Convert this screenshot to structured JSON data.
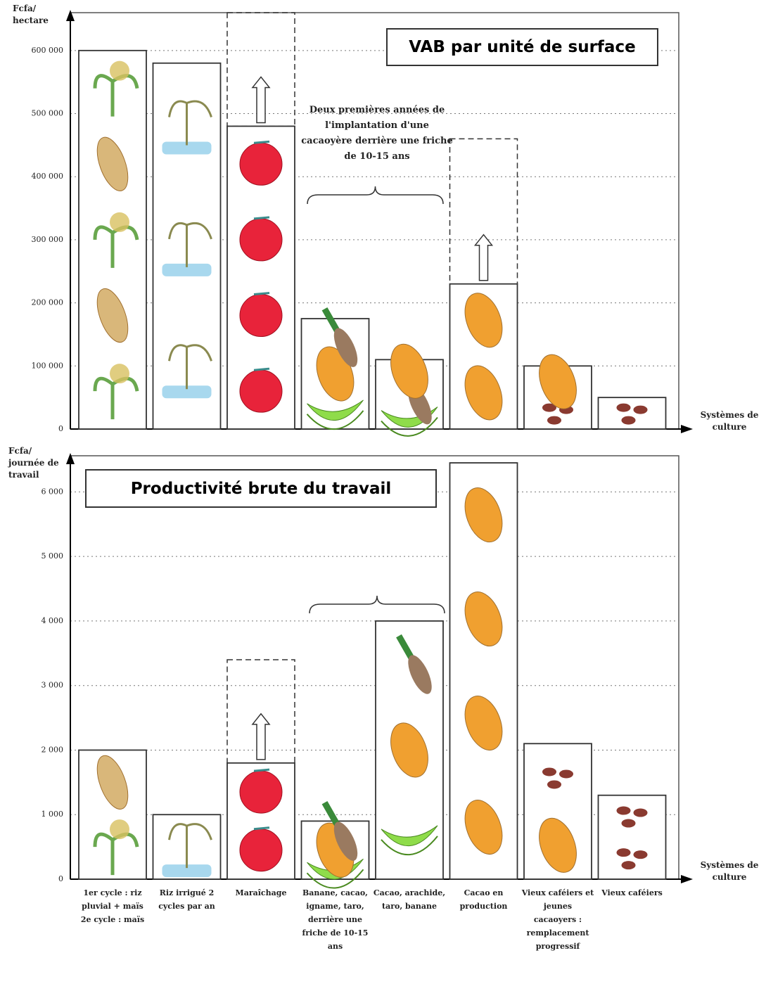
{
  "chart_data": [
    {
      "type": "bar",
      "title": "VAB par unité de surface",
      "y_label": "Fcfa/ hectare",
      "x_label": "Systèmes de culture",
      "annotation": "Deux premières années de l'implantation d'une cacaoyère derrière une friche de 10-15 ans",
      "values": [
        600000,
        580000,
        480000,
        175000,
        110000,
        230000,
        100000,
        50000
      ],
      "potential_values": [
        null,
        null,
        660000,
        null,
        null,
        460000,
        null,
        null
      ],
      "ylim": [
        0,
        660000
      ],
      "yticks": [
        0,
        {
          "value": 100000,
          "label": "100 000"
        },
        {
          "value": 200000,
          "label": "200 000"
        },
        {
          "value": 300000,
          "label": "300 000"
        },
        {
          "value": 400000,
          "label": "400 000"
        },
        {
          "value": 500000,
          "label": "500 000"
        },
        {
          "value": 600000,
          "label": "600 000"
        }
      ],
      "grid": true
    },
    {
      "type": "bar",
      "title": "Productivité brute du travail",
      "y_label": "Fcfa/ journée de travail",
      "x_label": "Systèmes de culture",
      "categories": [
        "1er cycle : riz pluvial + maïs 2e cycle : maïs",
        "Riz irrigué 2 cycles par an",
        "Maraîchage",
        "Banane, cacao, igname, taro, derrière une friche de 10-15 ans",
        "Cacao, arachide, taro, banane",
        "Cacao en production",
        "Vieux caféiers et jeunes cacaoyers : remplacement progressif",
        "Vieux caféiers"
      ],
      "values": [
        2000,
        1000,
        1800,
        900,
        4000,
        6450,
        2100,
        1300
      ],
      "potential_values": [
        null,
        null,
        3400,
        null,
        null,
        null,
        null,
        null
      ],
      "ylim": [
        0,
        6560
      ],
      "yticks": [
        0,
        {
          "value": 1000,
          "label": "1 000"
        },
        {
          "value": 2000,
          "label": "2 000"
        },
        {
          "value": 3000,
          "label": "3 000"
        },
        {
          "value": 4000,
          "label": "4 000"
        },
        {
          "value": 5000,
          "label": "5 000"
        },
        {
          "value": 6000,
          "label": "6 000"
        }
      ],
      "grid": true
    }
  ]
}
